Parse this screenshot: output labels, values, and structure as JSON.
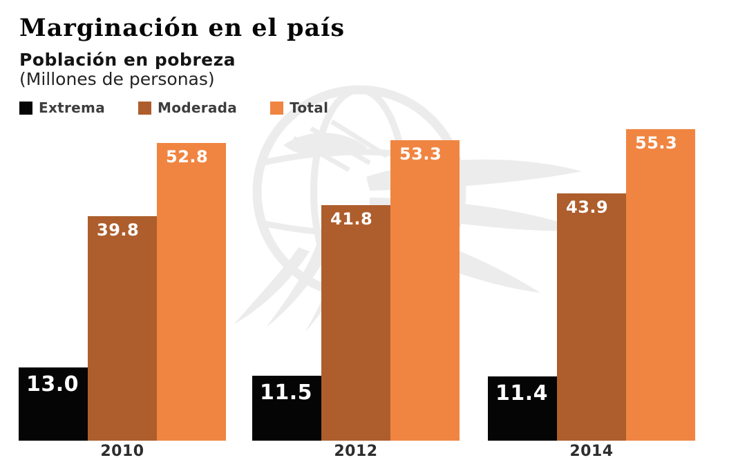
{
  "header": {
    "title": "Marginación en el país",
    "subtitle_bold": "Población en pobreza",
    "subtitle_light": "(Millones de personas)"
  },
  "legend": {
    "items": [
      {
        "label": "Extrema",
        "color": "#050505"
      },
      {
        "label": "Moderada",
        "color": "#ad5e2c"
      },
      {
        "label": "Total",
        "color": "#f08541"
      }
    ]
  },
  "chart_data": {
    "type": "bar",
    "title": "Marginación en el país",
    "subtitle": "Población en pobreza (Millones de personas)",
    "categories": [
      "2010",
      "2012",
      "2014"
    ],
    "series": [
      {
        "name": "Extrema",
        "color": "#050505",
        "values": [
          13.0,
          11.5,
          11.4
        ],
        "labels": [
          "13.0",
          "11.5",
          "11.4"
        ]
      },
      {
        "name": "Moderada",
        "color": "#ad5e2c",
        "values": [
          39.8,
          41.8,
          43.9
        ],
        "labels": [
          "39.8",
          "41.8",
          "43.9"
        ]
      },
      {
        "name": "Total",
        "color": "#f08541",
        "values": [
          52.8,
          53.3,
          55.3
        ],
        "labels": [
          "52.8",
          "53.3",
          "55.3"
        ]
      }
    ],
    "ylim": [
      0,
      55.3
    ],
    "grid": false,
    "axes_visible": false,
    "value_labels": "inside-top-left",
    "legend_position": "top-left"
  },
  "watermark": {
    "icon": "eagle-globe-watermark",
    "color": "#ececec"
  }
}
